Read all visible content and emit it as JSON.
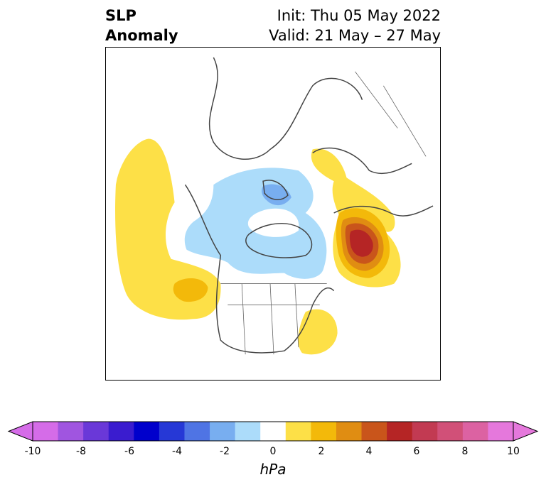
{
  "title": {
    "left_line1": "SLP",
    "left_line2": "Anomaly",
    "right_line1": "Init: Thu 05 May 2022",
    "right_line2": "Valid: 21 May – 27 May"
  },
  "map": {
    "projection": "north-polar-stereographic",
    "region": "Northern Hemisphere / North America"
  },
  "colorbar": {
    "label": "hPa",
    "ticks": [
      "-10",
      "-8",
      "-6",
      "-4",
      "-2",
      "0",
      "2",
      "4",
      "6",
      "8",
      "10"
    ],
    "bins": [
      -10,
      -9,
      -8,
      -7,
      -6,
      -5,
      -4,
      -3,
      -2,
      -1,
      1,
      2,
      3,
      4,
      5,
      6,
      7,
      8,
      9,
      10
    ],
    "colors": [
      "#d56ce8",
      "#a055e0",
      "#6a38d8",
      "#3a1ccf",
      "#0000cc",
      "#2638d6",
      "#4f74e4",
      "#78aef0",
      "#acdcfa",
      "#ffffff",
      "#fde047",
      "#f3b90a",
      "#e08d12",
      "#c9551b",
      "#b52525",
      "#c23a52",
      "#d15078",
      "#dc62a2",
      "#e578dc"
    ],
    "extend": "both"
  }
}
